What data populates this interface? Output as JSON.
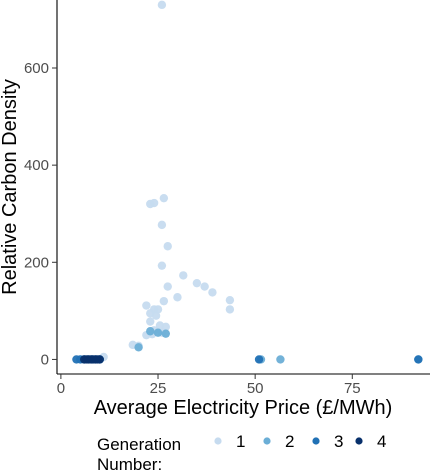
{
  "chart_data": {
    "type": "scatter",
    "title": "",
    "xlabel": "Average Electricity Price (£/MWh)",
    "ylabel": "Relative Carbon Density",
    "xlim": [
      -1,
      95
    ],
    "ylim": [
      -30,
      740
    ],
    "x_ticks": [
      0,
      25,
      50,
      75
    ],
    "y_ticks": [
      0,
      200,
      400,
      600
    ],
    "grid": false,
    "legend": {
      "title": "Generation Number:",
      "title_lines": [
        "Generation",
        "Number:"
      ],
      "placement": "bottom",
      "labels": [
        "1",
        "2",
        "3",
        "4"
      ]
    },
    "colors": {
      "1": "#c6dbef",
      "2": "#6baed6",
      "3": "#2171b5",
      "4": "#08306b",
      "axis": "#000000",
      "tick_label": "#4d4d4d"
    },
    "series": [
      {
        "name": "1",
        "points": [
          [
            26,
            730
          ],
          [
            23,
            320
          ],
          [
            24,
            322
          ],
          [
            26.5,
            332
          ],
          [
            26,
            277
          ],
          [
            27.5,
            233
          ],
          [
            26,
            193
          ],
          [
            31.5,
            173
          ],
          [
            35,
            157
          ],
          [
            37,
            150
          ],
          [
            39,
            138
          ],
          [
            27.5,
            150
          ],
          [
            30,
            128
          ],
          [
            43.5,
            122
          ],
          [
            43.5,
            103
          ],
          [
            26.5,
            120
          ],
          [
            22,
            111
          ],
          [
            24,
            103
          ],
          [
            25,
            103
          ],
          [
            23,
            95
          ],
          [
            24.5,
            90
          ],
          [
            23,
            78
          ],
          [
            25.5,
            70
          ],
          [
            27,
            67
          ],
          [
            24,
            60
          ],
          [
            22,
            50
          ],
          [
            23.5,
            52
          ],
          [
            26,
            55
          ],
          [
            18.5,
            30
          ],
          [
            20,
            28
          ],
          [
            11,
            5
          ],
          [
            5,
            0
          ],
          [
            7,
            0
          ],
          [
            9,
            0
          ]
        ]
      },
      {
        "name": "2",
        "points": [
          [
            20,
            25
          ],
          [
            23,
            58
          ],
          [
            25,
            55
          ],
          [
            27,
            53
          ],
          [
            56.5,
            0
          ],
          [
            51.5,
            0
          ],
          [
            92,
            0
          ],
          [
            6,
            0
          ],
          [
            8,
            0
          ],
          [
            10,
            0
          ]
        ]
      },
      {
        "name": "3",
        "points": [
          [
            4,
            0
          ],
          [
            5,
            0
          ],
          [
            6,
            0
          ],
          [
            7,
            0
          ],
          [
            8,
            0
          ],
          [
            9,
            0
          ],
          [
            10,
            0
          ],
          [
            51,
            0
          ],
          [
            92,
            0
          ]
        ]
      },
      {
        "name": "4",
        "points": [
          [
            6,
            0
          ],
          [
            6.5,
            0
          ],
          [
            7,
            0
          ],
          [
            7.5,
            0
          ],
          [
            8,
            0
          ],
          [
            8.5,
            0
          ],
          [
            9,
            0
          ],
          [
            9.5,
            0
          ],
          [
            10,
            0
          ]
        ]
      }
    ]
  }
}
